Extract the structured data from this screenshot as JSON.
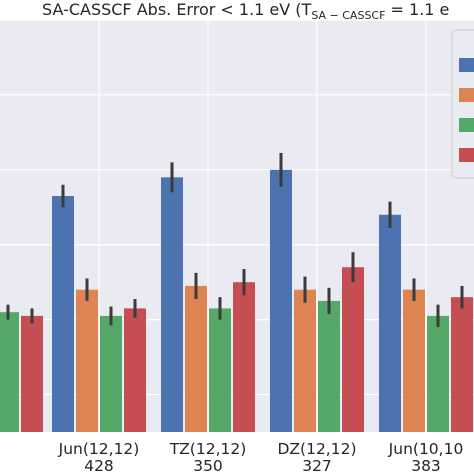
{
  "chart_data": {
    "type": "bar",
    "title": "SA-CASSCF Abs. Error < 1.1 eV (T",
    "title_sub": "SA − CASSCF",
    "title_tail": " = 1.1 e",
    "grid": true,
    "style": "seaborn-darkgrid",
    "ylim": [
      0,
      1.1
    ],
    "categories": [
      {
        "name": "",
        "count": ""
      },
      {
        "name": "Jun(12,12)",
        "count": "428"
      },
      {
        "name": "TZ(12,12)",
        "count": "350"
      },
      {
        "name": "DZ(12,12)",
        "count": "327"
      },
      {
        "name": "Jun(10,10",
        "count": "383"
      }
    ],
    "series": [
      {
        "color": "#4c72b0",
        "values": [
          null,
          0.63,
          0.68,
          0.7,
          0.58
        ],
        "errors": [
          null,
          0.03,
          0.04,
          0.045,
          0.035
        ]
      },
      {
        "color": "#dd8452",
        "values": [
          null,
          0.38,
          0.39,
          0.38,
          0.38
        ],
        "errors": [
          null,
          0.03,
          0.035,
          0.035,
          0.03
        ]
      },
      {
        "color": "#55a868",
        "values": [
          0.32,
          0.31,
          0.33,
          0.35,
          0.31
        ],
        "errors": [
          0.02,
          0.025,
          0.03,
          0.035,
          0.03
        ]
      },
      {
        "color": "#c44e52",
        "values": [
          0.31,
          0.33,
          0.4,
          0.44,
          0.36
        ],
        "errors": [
          0.02,
          0.025,
          0.035,
          0.04,
          0.03
        ]
      }
    ],
    "legend": {
      "placement": "top-right",
      "colors": [
        "#4c72b0",
        "#dd8452",
        "#55a868",
        "#c44e52"
      ]
    }
  }
}
